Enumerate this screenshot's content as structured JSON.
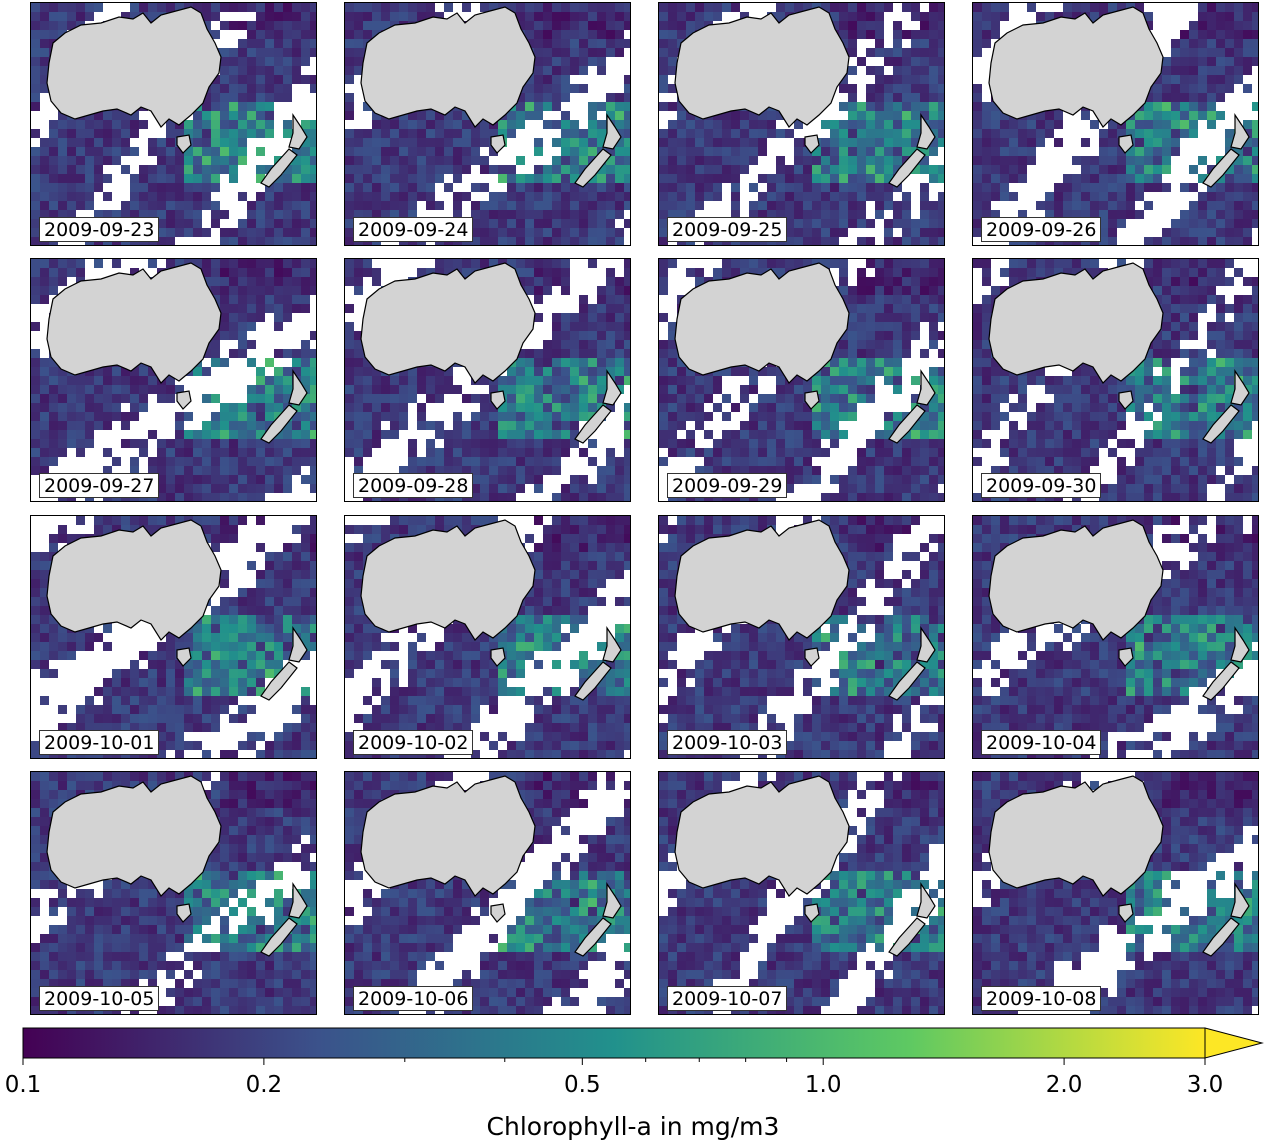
{
  "figure": {
    "panels": [
      {
        "date": "2009-09-23"
      },
      {
        "date": "2009-09-24"
      },
      {
        "date": "2009-09-25"
      },
      {
        "date": "2009-09-26"
      },
      {
        "date": "2009-09-27"
      },
      {
        "date": "2009-09-28"
      },
      {
        "date": "2009-09-29"
      },
      {
        "date": "2009-09-30"
      },
      {
        "date": "2009-10-01"
      },
      {
        "date": "2009-10-02"
      },
      {
        "date": "2009-10-03"
      },
      {
        "date": "2009-10-04"
      },
      {
        "date": "2009-10-05"
      },
      {
        "date": "2009-10-06"
      },
      {
        "date": "2009-10-07"
      },
      {
        "date": "2009-10-08"
      }
    ]
  },
  "colorbar": {
    "label": "Chlorophyll-a in mg/m3",
    "ticks": [
      "0.1",
      "0.2",
      "0.5",
      "1.0",
      "2.0",
      "3.0"
    ],
    "colormap": "viridis",
    "scale": "log",
    "extend": "max"
  },
  "colors": {
    "land": "#d3d3d3",
    "no_data": "#ffffff",
    "viridis": [
      "#440154",
      "#3b528b",
      "#21918c",
      "#5ec962",
      "#fde725"
    ]
  },
  "chart_data": {
    "type": "heatmap",
    "title": "",
    "grid": "4x4",
    "variable": "Chlorophyll-a in mg/m3",
    "vmin": 0.1,
    "vmax": 3.0,
    "scale": "log",
    "dates": [
      "2009-09-23",
      "2009-09-24",
      "2009-09-25",
      "2009-09-26",
      "2009-09-27",
      "2009-09-28",
      "2009-09-29",
      "2009-09-30",
      "2009-10-01",
      "2009-10-02",
      "2009-10-03",
      "2009-10-04",
      "2009-10-05",
      "2009-10-06",
      "2009-10-07",
      "2009-10-08"
    ],
    "colorbar_ticks": [
      0.1,
      0.2,
      0.5,
      1.0,
      2.0,
      3.0
    ]
  }
}
